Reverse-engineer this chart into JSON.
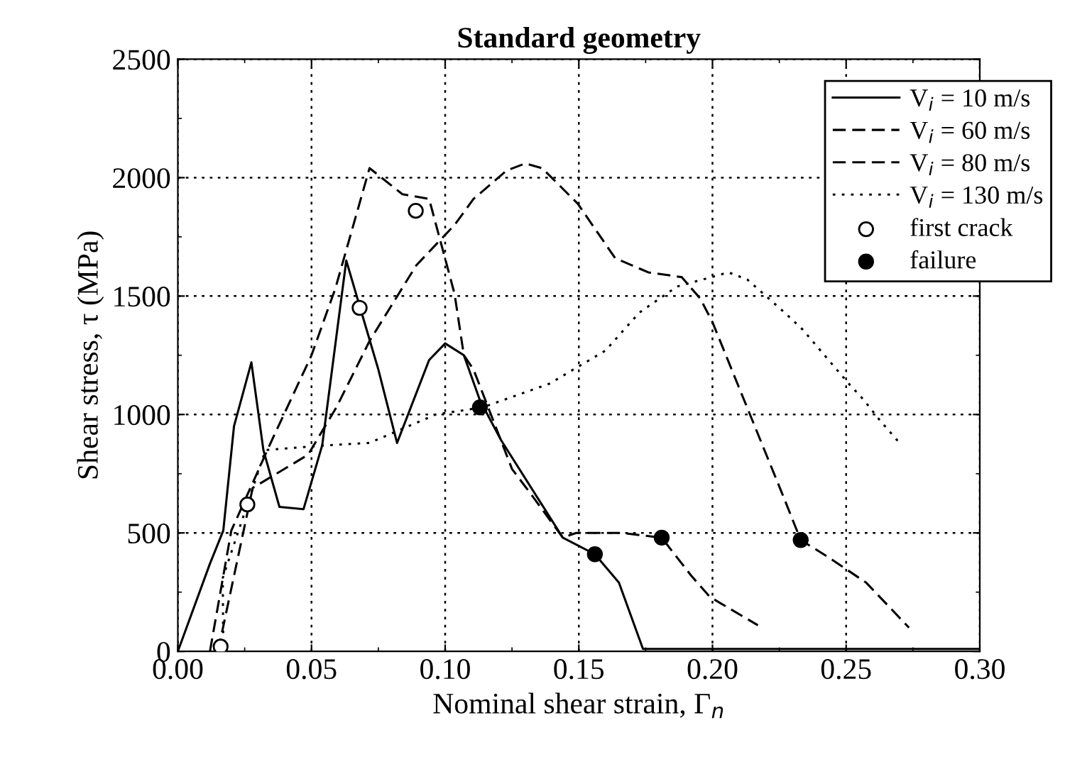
{
  "chart_data": {
    "type": "line",
    "title": "Standard geometry",
    "xlabel": "Nominal shear strain, Γ$_{n}$",
    "ylabel": "Shear stress, τ (MPa)",
    "xlim": [
      0,
      0.3
    ],
    "ylim": [
      0,
      2500
    ],
    "xticks": [
      {
        "value": 0,
        "label": "0.00"
      },
      0.05,
      {
        "value": 0.1,
        "label": "0.10"
      },
      0.15,
      {
        "value": 0.2,
        "label": "0.20"
      },
      0.25,
      {
        "value": 0.3,
        "label": "0.30"
      }
    ],
    "yticks": [
      0,
      500,
      1000,
      1500,
      2000,
      2500
    ],
    "grid": true,
    "legend": "top right",
    "series": [
      {
        "name": "V$_{i}$ = 10 m/s",
        "type": "line",
        "line_style": "solid",
        "color": "#000000",
        "x": [
          0,
          0.012,
          0.017,
          0.021,
          0.0275,
          0.032,
          0.038,
          0.047,
          0.054,
          0.063,
          0.075,
          0.082,
          0.094,
          0.1,
          0.107,
          0.113,
          0.121,
          0.144,
          0.156,
          0.165,
          0.174,
          0.3
        ],
        "values": [
          0,
          370,
          510,
          950,
          1220,
          850,
          610,
          600,
          870,
          1650,
          1190,
          880,
          1230,
          1300,
          1250,
          1060,
          890,
          480,
          410,
          290,
          10,
          10
        ]
      },
      {
        "name": "V$_{i}$ = 60 m/s",
        "type": "line",
        "line_style": "dashed",
        "color": "#000000",
        "x": [
          0.012,
          0.02,
          0.0345,
          0.05,
          0.059,
          0.0717,
          0.084,
          0.094,
          0.1035,
          0.107,
          0.1106,
          0.125,
          0.133,
          0.144,
          0.149,
          0.166,
          0.181,
          0.192,
          0.199,
          0.217
        ],
        "values": [
          0,
          510,
          875,
          1250,
          1535,
          2040,
          1930,
          1910,
          1510,
          1250,
          1190,
          770,
          650,
          480,
          500,
          500,
          480,
          320,
          230,
          110
        ]
      },
      {
        "name": "V$_{i}$ = 80 m/s",
        "type": "line",
        "line_style": "dashed",
        "color": "#000000",
        "x": [
          0.015,
          0.028,
          0.0487,
          0.0593,
          0.0717,
          0.0892,
          0.1035,
          0.1106,
          0.123,
          0.13,
          0.1363,
          0.1496,
          0.1636,
          0.176,
          0.1885,
          0.1954,
          0.2,
          0.2097,
          0.227,
          0.233,
          0.243,
          0.2575,
          0.2735
        ],
        "values": [
          0,
          690,
          830,
          1030,
          1310,
          1630,
          1800,
          1910,
          2030,
          2060,
          2040,
          1890,
          1660,
          1600,
          1580,
          1490,
          1390,
          1120,
          640,
          470,
          400,
          290,
          100
        ]
      },
      {
        "name": "V$_{i}$ = 130 m/s",
        "type": "line",
        "line_style": "dotted",
        "color": "#000000",
        "x": [
          0.017,
          0.0168,
          0.026,
          0.0328,
          0.0558,
          0.0717,
          0.0965,
          0.114,
          0.139,
          0.16,
          0.1726,
          0.1867,
          0.206,
          0.213,
          0.227,
          0.2336,
          0.251,
          0.2567,
          0.263,
          0.27
        ],
        "values": [
          0,
          310,
          620,
          850,
          870,
          880,
          1000,
          1030,
          1130,
          1270,
          1430,
          1540,
          1600,
          1570,
          1430,
          1360,
          1130,
          1060,
          970,
          880
        ]
      },
      {
        "name": "first crack",
        "type": "scatter",
        "marker": "circle",
        "color": "#ffffff",
        "x": [
          0.016,
          0.026,
          0.068,
          0.089
        ],
        "values": [
          20,
          620,
          1450,
          1860
        ]
      },
      {
        "name": "failure",
        "type": "scatter",
        "marker": "circle",
        "color": "#000000",
        "x": [
          0.113,
          0.156,
          0.181,
          0.233
        ],
        "values": [
          1030,
          410,
          480,
          470
        ]
      }
    ]
  }
}
